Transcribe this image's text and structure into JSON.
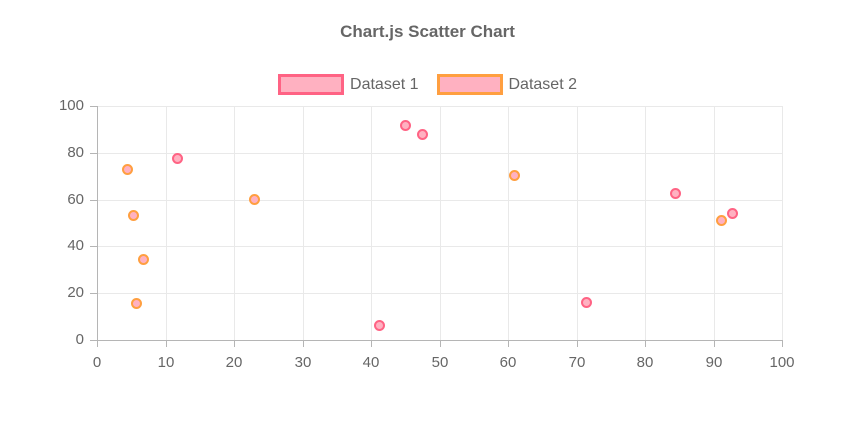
{
  "header": {
    "title": "Chart.js Scatter Chart"
  },
  "legend": {
    "items": [
      {
        "label": "Dataset 1",
        "border_color": "#ff6384",
        "fill_color": "#ffb1c1"
      },
      {
        "label": "Dataset 2",
        "border_color": "#ff9f40",
        "fill_color": "#ffb1c1"
      }
    ]
  },
  "chart_data": {
    "type": "scatter",
    "title": "Chart.js Scatter Chart",
    "xlabel": "",
    "ylabel": "",
    "xlim": [
      0,
      100
    ],
    "ylim": [
      0,
      100
    ],
    "x_ticks": [
      0,
      10,
      20,
      30,
      40,
      50,
      60,
      70,
      80,
      90,
      100
    ],
    "y_ticks": [
      0,
      20,
      40,
      60,
      80,
      100
    ],
    "grid": true,
    "legend_position": "top",
    "colors": {
      "text": "#666666",
      "grid": "#e9e9e9",
      "axis": "#b5b5b5",
      "dataset1_border": "#ff6384",
      "dataset2_border": "#ff9f40",
      "point_fill": "#ffb1c1"
    },
    "series": [
      {
        "name": "Dataset 1",
        "border_color": "#ff6384",
        "fill_color": "#ffb1c1",
        "points": [
          {
            "x": 11.8,
            "y": 77.5
          },
          {
            "x": 41.2,
            "y": 6
          },
          {
            "x": 45,
            "y": 91.5
          },
          {
            "x": 47.5,
            "y": 88
          },
          {
            "x": 71.4,
            "y": 16
          },
          {
            "x": 84.5,
            "y": 62.5
          },
          {
            "x": 92.8,
            "y": 54.2
          }
        ]
      },
      {
        "name": "Dataset 2",
        "border_color": "#ff9f40",
        "fill_color": "#ffb1c1",
        "points": [
          {
            "x": 4.4,
            "y": 73
          },
          {
            "x": 5.3,
            "y": 53
          },
          {
            "x": 6.8,
            "y": 34.2
          },
          {
            "x": 5.8,
            "y": 15.8
          },
          {
            "x": 23,
            "y": 60.2
          },
          {
            "x": 61,
            "y": 70.2
          },
          {
            "x": 91.2,
            "y": 51
          }
        ]
      }
    ]
  }
}
